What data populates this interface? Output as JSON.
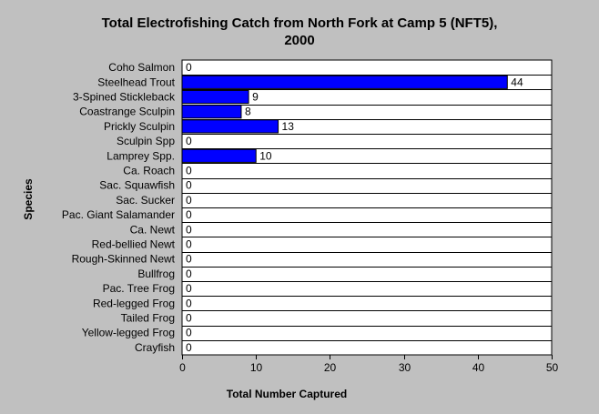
{
  "colors": {
    "background": "#c0c0c0",
    "plot_background": "#ffffff",
    "bar": "#0000ff",
    "bar_outline": "#000000"
  },
  "chart_data": {
    "type": "bar",
    "orientation": "horizontal",
    "title": "Total Electrofishing Catch from North Fork at Camp 5 (NFT5), 2000",
    "title_lines": [
      "Total Electrofishing Catch from North Fork at Camp 5 (NFT5),",
      "2000"
    ],
    "xlabel": "Total Number Captured",
    "ylabel": "Species",
    "categories": [
      "Coho Salmon",
      "Steelhead Trout",
      "3-Spined Stickleback",
      "Coastrange Sculpin",
      "Prickly Sculpin",
      "Sculpin Spp",
      "Lamprey Spp.",
      "Ca. Roach",
      "Sac. Squawfish",
      "Sac. Sucker",
      "Pac. Giant Salamander",
      "Ca. Newt",
      "Red-bellied Newt",
      "Rough-Skinned Newt",
      "Bullfrog",
      "Pac. Tree Frog",
      "Red-legged Frog",
      "Tailed Frog",
      "Yellow-legged Frog",
      "Crayfish"
    ],
    "values": [
      0,
      44,
      9,
      8,
      13,
      0,
      10,
      0,
      0,
      0,
      0,
      0,
      0,
      0,
      0,
      0,
      0,
      0,
      0,
      0
    ],
    "data_labels": [
      "0",
      "44",
      "9",
      "8",
      "13",
      "0",
      "10",
      "0",
      "0",
      "0",
      "0",
      "0",
      "0",
      "0",
      "0",
      "0",
      "0",
      "0",
      "0",
      "0"
    ],
    "xlim": [
      0,
      50
    ],
    "xticks": [
      0,
      10,
      20,
      30,
      40,
      50
    ],
    "xtick_labels": [
      "0",
      "10",
      "20",
      "30",
      "40",
      "50"
    ],
    "grid": "horizontal lines between categories",
    "legend": "none"
  }
}
